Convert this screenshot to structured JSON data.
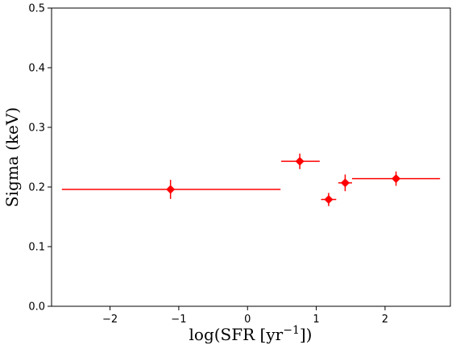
{
  "chart_data": {
    "type": "scatter",
    "xlabel_base": "log(SFR [yr",
    "xlabel_sup": "−1",
    "xlabel_end": "])",
    "ylabel": "Sigma (keV)",
    "xlim": [
      -2.85,
      2.95
    ],
    "ylim": [
      0.0,
      0.5
    ],
    "xticks": [
      -2,
      -1,
      0,
      1,
      2
    ],
    "xtick_labels": [
      "−2",
      "−1",
      "0",
      "1",
      "2"
    ],
    "yticks": [
      0.0,
      0.1,
      0.2,
      0.3,
      0.4,
      0.5
    ],
    "ytick_labels": [
      "0.0",
      "0.1",
      "0.2",
      "0.3",
      "0.4",
      "0.5"
    ],
    "grid": false,
    "color": "#ff0000",
    "points": [
      {
        "x": -1.12,
        "y": 0.196,
        "xerr_low": 1.58,
        "xerr_high": 1.6,
        "yerr": 0.016
      },
      {
        "x": 0.76,
        "y": 0.243,
        "xerr_low": 0.27,
        "xerr_high": 0.29,
        "yerr": 0.013
      },
      {
        "x": 1.18,
        "y": 0.179,
        "xerr_low": 0.11,
        "xerr_high": 0.11,
        "yerr": 0.011
      },
      {
        "x": 1.42,
        "y": 0.207,
        "xerr_low": 0.1,
        "xerr_high": 0.1,
        "yerr": 0.014
      },
      {
        "x": 2.16,
        "y": 0.214,
        "xerr_low": 0.64,
        "xerr_high": 0.64,
        "yerr": 0.012
      }
    ]
  }
}
